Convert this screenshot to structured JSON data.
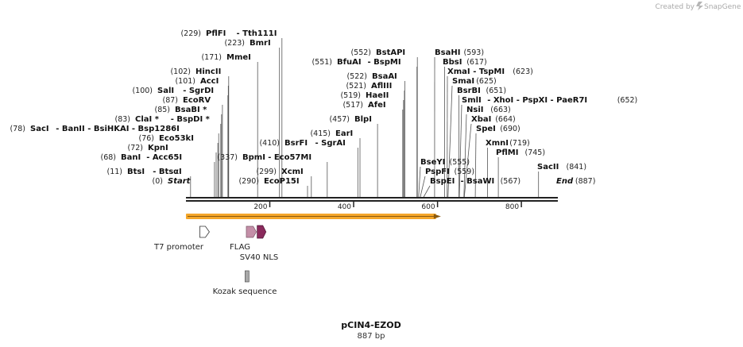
{
  "brand": {
    "created_by": "Created by",
    "name": "SnapGene"
  },
  "sequence": {
    "name": "pCIN4-EZOD",
    "length_label": "887 bp",
    "length": 887
  },
  "colors": {
    "backbone": "#222222",
    "orf": "#f4a62a",
    "t7_promoter": "#ffffff",
    "flag": "#c48fa8",
    "sv40_nls": "#8a2a5c",
    "kozak": "#a8a8a8",
    "leader": "#555555"
  },
  "ruler": {
    "ticks": [
      {
        "value": 200,
        "label": "200"
      },
      {
        "value": 400,
        "label": "400"
      },
      {
        "value": 600,
        "label": "600"
      },
      {
        "value": 800,
        "label": "800"
      }
    ]
  },
  "sites": [
    {
      "name": "Start",
      "pos": "(0)",
      "bp": 0,
      "italic": true,
      "pos_side": "left"
    },
    {
      "name": "BtsI",
      "pos": "(11)",
      "bp": 11,
      "suffix": "- BtsαI",
      "pos_side": "left"
    },
    {
      "name": "BanI",
      "pos": "(68)",
      "bp": 68,
      "suffix": "- Acc65I",
      "pos_side": "left"
    },
    {
      "name": "KpnI",
      "pos": "(72)",
      "bp": 72,
      "pos_side": "left"
    },
    {
      "name": "Eco53kI",
      "pos": "(76)",
      "bp": 76,
      "pos_side": "left"
    },
    {
      "name": "SacI",
      "pos": "(78)",
      "bp": 78,
      "suffix": "- BanII  - BsiHKAI  - Bsp1286I",
      "pos_side": "left"
    },
    {
      "name": "ClaI *",
      "pos": "(83)",
      "bp": 83,
      "suffix": "- BspDI *",
      "pos_side": "left"
    },
    {
      "name": "BsaBI *",
      "pos": "(85)",
      "bp": 85,
      "pos_side": "left"
    },
    {
      "name": "EcoRV",
      "pos": "(87)",
      "bp": 87,
      "pos_side": "left"
    },
    {
      "name": "SalI",
      "pos": "(100)",
      "bp": 100,
      "suffix": "- SgrDI",
      "pos_side": "left"
    },
    {
      "name": "AccI",
      "pos": "(101)",
      "bp": 101,
      "pos_side": "left"
    },
    {
      "name": "HincII",
      "pos": "(102)",
      "bp": 102,
      "pos_side": "left"
    },
    {
      "name": "MmeI",
      "pos": "(171)",
      "bp": 171,
      "pos_side": "left"
    },
    {
      "name": "BmrI",
      "pos": "(223)",
      "bp": 223,
      "pos_side": "left"
    },
    {
      "name": "PflFI",
      "pos": "(229)",
      "bp": 229,
      "suffix": "- Tth111I",
      "pos_side": "left"
    },
    {
      "name": "EcoP15I",
      "pos": "(290)",
      "bp": 290,
      "pos_side": "left"
    },
    {
      "name": "XcmI",
      "pos": "(299)",
      "bp": 299,
      "pos_side": "left"
    },
    {
      "name": "BpmI",
      "pos": "(337)",
      "bp": 337,
      "suffix": "- Eco57MI",
      "pos_side": "left"
    },
    {
      "name": "BsrFI",
      "pos": "(410)",
      "bp": 410,
      "suffix": "- SgrAI",
      "pos_side": "left"
    },
    {
      "name": "EarI",
      "pos": "(415)",
      "bp": 415,
      "pos_side": "left"
    },
    {
      "name": "BlpI",
      "pos": "(457)",
      "bp": 457,
      "pos_side": "left"
    },
    {
      "name": "AfeI",
      "pos": "(517)",
      "bp": 517,
      "pos_side": "left"
    },
    {
      "name": "HaeII",
      "pos": "(519)",
      "bp": 519,
      "pos_side": "left"
    },
    {
      "name": "AflIII",
      "pos": "(521)",
      "bp": 521,
      "pos_side": "left"
    },
    {
      "name": "BsaAI",
      "pos": "(522)",
      "bp": 522,
      "pos_side": "left"
    },
    {
      "name": "BfuAI",
      "pos": "(551)",
      "bp": 551,
      "suffix": "- BspMI",
      "pos_side": "left"
    },
    {
      "name": "BstAPI",
      "pos": "(552)",
      "bp": 552,
      "pos_side": "left"
    },
    {
      "name": "BseYI",
      "pos": "(555)",
      "bp": 555,
      "pos_side": "right"
    },
    {
      "name": "PspFI",
      "pos": "(559)",
      "bp": 559,
      "pos_side": "right"
    },
    {
      "name": "BspEI",
      "pos": "(567)",
      "bp": 567,
      "suffix": "- BsaWI",
      "pos_side": "right"
    },
    {
      "name": "BsaHI",
      "pos": "(593)",
      "bp": 593,
      "pos_side": "right"
    },
    {
      "name": "BbsI",
      "pos": "(617)",
      "bp": 617,
      "pos_side": "right"
    },
    {
      "name": "XmaI",
      "pos": "(623)",
      "bp": 623,
      "suffix": "- TspMI",
      "pos_side": "right"
    },
    {
      "name": "SmaI",
      "pos": "(625)",
      "bp": 625,
      "pos_side": "right"
    },
    {
      "name": "BsrBI",
      "pos": "(651)",
      "bp": 651,
      "pos_side": "right"
    },
    {
      "name": "SmlI",
      "pos": "(652)",
      "bp": 652,
      "suffix": "- XhoI  - PspXI  - PaeR7I",
      "pos_side": "right"
    },
    {
      "name": "NsiI",
      "pos": "(663)",
      "bp": 663,
      "pos_side": "right"
    },
    {
      "name": "XbaI",
      "pos": "(664)",
      "bp": 664,
      "pos_side": "right"
    },
    {
      "name": "SpeI",
      "pos": "(690)",
      "bp": 690,
      "pos_side": "right"
    },
    {
      "name": "XmnI",
      "pos": "(719)",
      "bp": 719,
      "pos_side": "right"
    },
    {
      "name": "PflMI",
      "pos": "(745)",
      "bp": 745,
      "pos_side": "right"
    },
    {
      "name": "SacII",
      "pos": "(841)",
      "bp": 841,
      "pos_side": "right"
    },
    {
      "name": "End",
      "pos": "(887)",
      "bp": 887,
      "italic": true,
      "pos_side": "right"
    }
  ],
  "features": [
    {
      "name": "orf",
      "label": "",
      "start": 0,
      "end": 610
    },
    {
      "name": "t7-promoter",
      "label": "T7 promoter",
      "start": 34,
      "end": 52
    },
    {
      "name": "flag",
      "label": "FLAG",
      "start": 144,
      "end": 168
    },
    {
      "name": "sv40-nls",
      "label": "SV40 NLS",
      "start": 168,
      "end": 189
    },
    {
      "name": "kozak-sequence",
      "label": "Kozak sequence",
      "start": 139,
      "end": 149
    }
  ]
}
